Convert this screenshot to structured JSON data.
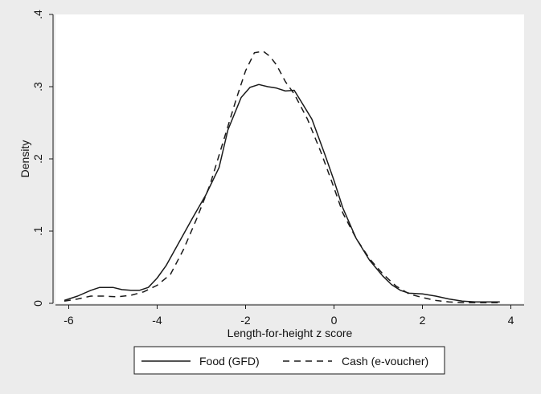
{
  "chart_data": {
    "type": "line",
    "title": "",
    "xlabel": "Length-for-height z score",
    "ylabel": "Density",
    "xlim": [
      -6.3,
      4.3
    ],
    "ylim": [
      0,
      0.4
    ],
    "x_ticks": [
      -6,
      -4,
      -2,
      0,
      2,
      4
    ],
    "x_tick_labels": [
      "-6",
      "-4",
      "-2",
      "0",
      "2",
      "4"
    ],
    "y_ticks": [
      0,
      0.1,
      0.2,
      0.3,
      0.4
    ],
    "y_tick_labels": [
      "0",
      ".1",
      ".2",
      ".3",
      ".4"
    ],
    "grid": false,
    "legend_position": "bottom",
    "series": [
      {
        "name": "Food (GFD)",
        "style": "solid",
        "color": "#1a1a1a",
        "x": [
          -6.1,
          -5.8,
          -5.5,
          -5.3,
          -5.0,
          -4.8,
          -4.6,
          -4.4,
          -4.2,
          -4.0,
          -3.8,
          -3.5,
          -3.2,
          -2.9,
          -2.6,
          -2.4,
          -2.1,
          -1.9,
          -1.7,
          -1.5,
          -1.3,
          -1.1,
          -0.9,
          -0.75,
          -0.5,
          -0.2,
          0.0,
          0.2,
          0.5,
          0.8,
          1.1,
          1.3,
          1.5,
          1.7,
          2.0,
          2.3,
          2.6,
          2.9,
          3.2,
          3.5,
          3.75
        ],
        "values": [
          0.004,
          0.01,
          0.018,
          0.022,
          0.022,
          0.019,
          0.018,
          0.018,
          0.022,
          0.035,
          0.052,
          0.085,
          0.118,
          0.15,
          0.188,
          0.24,
          0.285,
          0.299,
          0.303,
          0.3,
          0.298,
          0.294,
          0.295,
          0.28,
          0.255,
          0.205,
          0.17,
          0.132,
          0.09,
          0.06,
          0.038,
          0.026,
          0.018,
          0.014,
          0.013,
          0.01,
          0.006,
          0.003,
          0.002,
          0.002,
          0.002
        ]
      },
      {
        "name": "Cash (e-voucher)",
        "style": "dashed",
        "color": "#1a1a1a",
        "x": [
          -6.1,
          -5.8,
          -5.5,
          -5.2,
          -4.9,
          -4.6,
          -4.3,
          -4.0,
          -3.7,
          -3.4,
          -3.1,
          -2.8,
          -2.5,
          -2.2,
          -2.0,
          -1.8,
          -1.6,
          -1.45,
          -1.3,
          -1.1,
          -0.9,
          -0.6,
          -0.3,
          0.0,
          0.2,
          0.5,
          0.8,
          1.1,
          1.4,
          1.7,
          2.0,
          2.3,
          2.6,
          2.9,
          3.2,
          3.5,
          3.75
        ],
        "values": [
          0.003,
          0.006,
          0.01,
          0.01,
          0.009,
          0.011,
          0.016,
          0.025,
          0.04,
          0.075,
          0.118,
          0.165,
          0.225,
          0.285,
          0.322,
          0.347,
          0.349,
          0.342,
          0.33,
          0.307,
          0.29,
          0.255,
          0.21,
          0.16,
          0.125,
          0.09,
          0.062,
          0.041,
          0.024,
          0.013,
          0.008,
          0.004,
          0.002,
          0.001,
          0.001,
          0.001,
          0.001
        ]
      }
    ]
  }
}
